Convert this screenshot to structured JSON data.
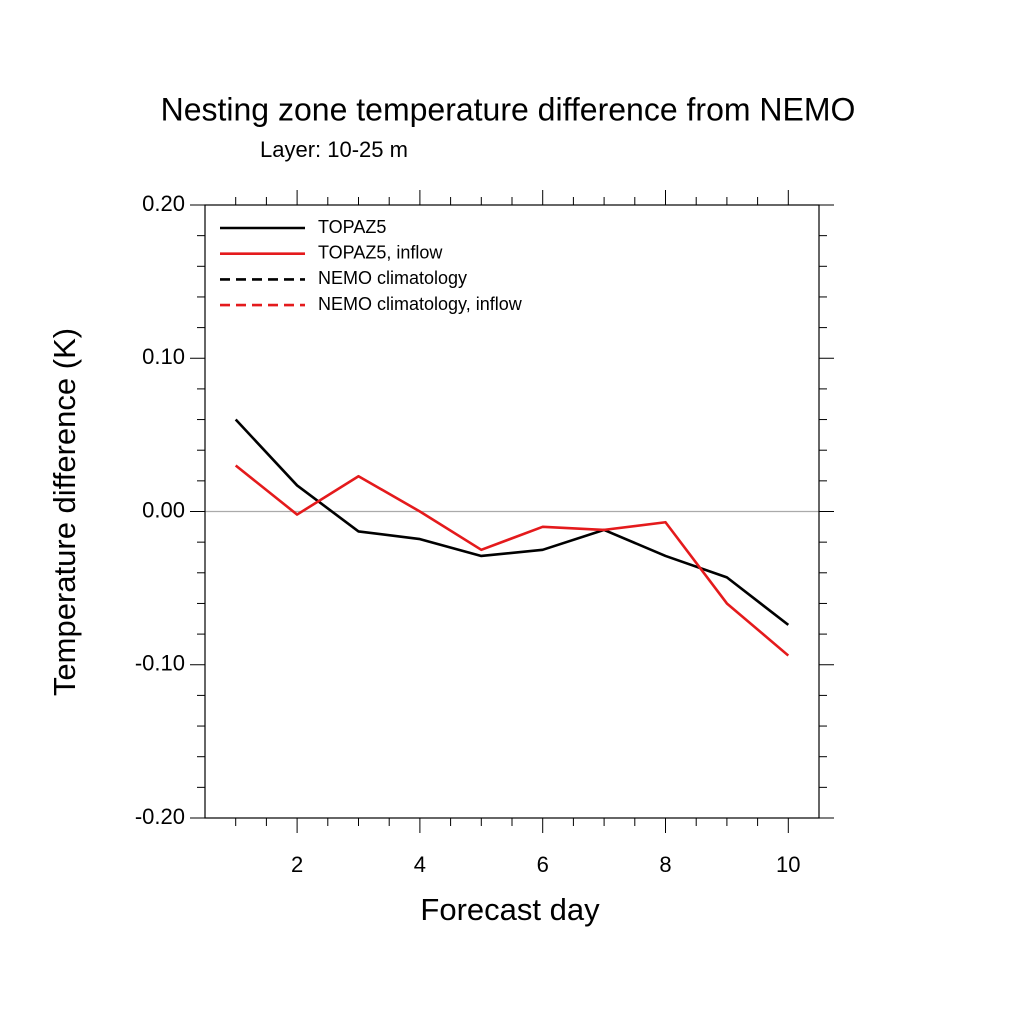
{
  "chart_data": {
    "type": "line",
    "title": "Nesting zone temperature difference from NEMO",
    "subtitle": "Layer: 10-25 m",
    "xlabel": "Forecast day",
    "ylabel": "Temperature difference (K)",
    "x": [
      1,
      2,
      3,
      4,
      5,
      6,
      7,
      8,
      9,
      10
    ],
    "series": [
      {
        "name": "TOPAZ5",
        "color": "#000000",
        "dash": false,
        "values": [
          0.06,
          0.017,
          -0.013,
          -0.018,
          -0.029,
          -0.025,
          -0.012,
          -0.029,
          -0.043,
          -0.074
        ]
      },
      {
        "name": "TOPAZ5, inflow",
        "color": "#e41a1c",
        "dash": false,
        "values": [
          0.03,
          -0.002,
          0.023,
          0.0,
          -0.025,
          -0.01,
          -0.012,
          -0.007,
          -0.06,
          -0.094
        ]
      },
      {
        "name": "NEMO climatology",
        "color": "#000000",
        "dash": true,
        "values": [
          null,
          null,
          null,
          null,
          null,
          null,
          null,
          null,
          null,
          null
        ]
      },
      {
        "name": "NEMO climatology, inflow",
        "color": "#e41a1c",
        "dash": true,
        "values": [
          null,
          null,
          null,
          null,
          null,
          null,
          null,
          null,
          null,
          null
        ]
      }
    ],
    "xlim": [
      0.5,
      10.5
    ],
    "ylim": [
      -0.2,
      0.2
    ],
    "xticks": [
      2,
      4,
      6,
      8,
      10
    ],
    "yticks": [
      {
        "value": -0.2,
        "label": "-0.20"
      },
      {
        "value": -0.1,
        "label": "-0.10"
      },
      {
        "value": 0,
        "label": "0.00"
      },
      {
        "value": 0.1,
        "label": "0.10"
      },
      {
        "value": 0.2,
        "label": "0.20"
      }
    ],
    "minor_xticks": [
      1,
      1.5,
      2.5,
      3,
      3.5,
      4.5,
      5,
      5.5,
      6.5,
      7,
      7.5,
      8.5,
      9,
      9.5
    ],
    "minor_yticks": [
      -0.18,
      -0.16,
      -0.14,
      -0.12,
      -0.08,
      -0.06,
      -0.04,
      -0.02,
      0.02,
      0.04,
      0.06,
      0.08,
      0.12,
      0.14,
      0.16,
      0.18
    ],
    "hline": 0,
    "legend": "upper left"
  }
}
